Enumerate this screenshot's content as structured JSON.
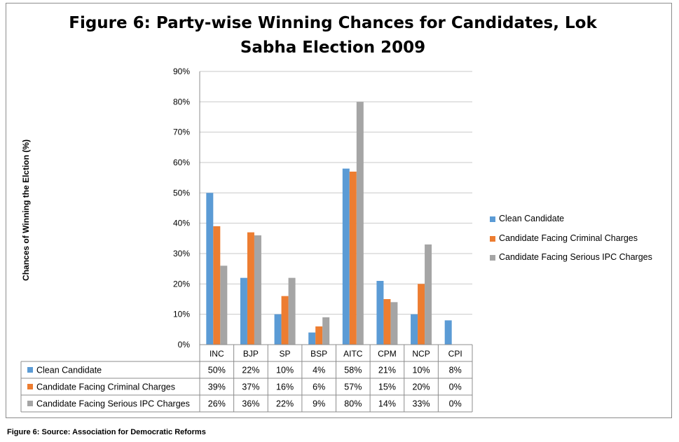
{
  "title": "Figure 6: Party-wise Winning Chances for Candidates, Lok Sabha Election 2009",
  "source_note": "Figure 6: Source: Association for Democratic Reforms",
  "chart_data": {
    "type": "bar",
    "title": "Figure 6: Party-wise Winning Chances for Candidates, Lok Sabha Election 2009",
    "ylabel": "Chances of Winning the Elction (%)",
    "xlabel": "",
    "ylim": [
      0,
      90
    ],
    "yticks": [
      "0%",
      "10%",
      "20%",
      "30%",
      "40%",
      "50%",
      "60%",
      "70%",
      "80%",
      "90%"
    ],
    "grid": true,
    "legend_position": "right",
    "data_table": true,
    "categories": [
      "INC",
      "BJP",
      "SP",
      "BSP",
      "AITC",
      "CPM",
      "NCP",
      "CPI"
    ],
    "series": [
      {
        "name": "Clean Candidate",
        "color": "#5b9bd5",
        "values": [
          50,
          22,
          10,
          4,
          58,
          21,
          10,
          8
        ],
        "labels": [
          "50%",
          "22%",
          "10%",
          "4%",
          "58%",
          "21%",
          "10%",
          "8%"
        ]
      },
      {
        "name": "Candidate Facing Criminal Charges",
        "color": "#ed7d31",
        "values": [
          39,
          37,
          16,
          6,
          57,
          15,
          20,
          0
        ],
        "labels": [
          "39%",
          "37%",
          "16%",
          "6%",
          "57%",
          "15%",
          "20%",
          "0%"
        ]
      },
      {
        "name": "Candidate Facing Serious IPC Charges",
        "color": "#a5a5a5",
        "values": [
          26,
          36,
          22,
          9,
          80,
          14,
          33,
          0
        ],
        "labels": [
          "26%",
          "36%",
          "22%",
          "9%",
          "80%",
          "14%",
          "33%",
          "0%"
        ]
      }
    ]
  }
}
